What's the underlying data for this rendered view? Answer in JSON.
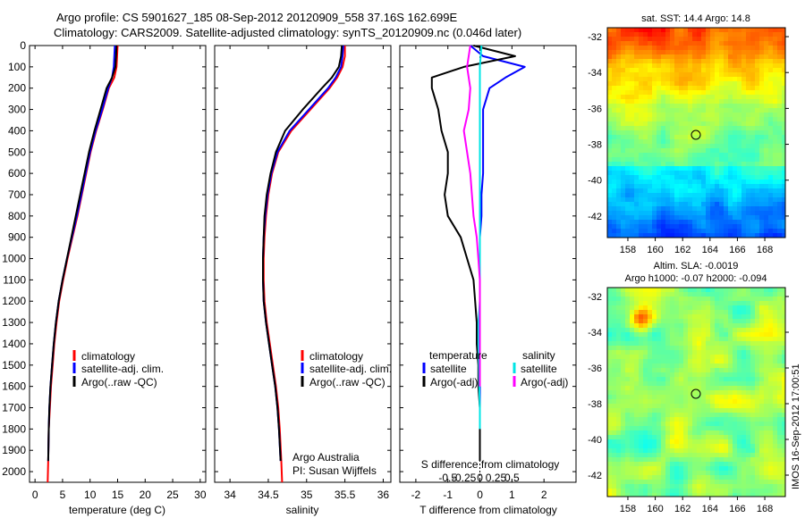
{
  "title_line1": "Argo profile: CS 5901627_185 08-Sep-2012 20120909_558 37.16S 162.699E",
  "title_line2": "Climatology: CARS2009. Satellite-adjusted climatology: synTS_20120909.nc (0.046d later)",
  "colors": {
    "climatology": "#ff0000",
    "satellite": "#0000ff",
    "argo": "#000000",
    "sal_satellite": "#00e5e5",
    "sal_argo": "#ff00ff"
  },
  "depth_ticks": [
    "0",
    "100",
    "200",
    "300",
    "400",
    "500",
    "600",
    "700",
    "800",
    "900",
    "1000",
    "1100",
    "1200",
    "1300",
    "1400",
    "1500",
    "1600",
    "1700",
    "1800",
    "1900",
    "2000"
  ],
  "panel_temp": {
    "xlabel": "temperature (deg C)",
    "xticks": [
      "0",
      "5",
      "10",
      "15",
      "20",
      "25",
      "30"
    ],
    "legend": [
      "climatology",
      "satellite-adj. clim.",
      "Argo(..raw -QC)"
    ]
  },
  "panel_sal": {
    "xlabel": "salinity",
    "xticks": [
      "34",
      "34.5",
      "35",
      "35.5",
      "36"
    ],
    "legend": [
      "climatology",
      "satellite-adj. clim.",
      "Argo(..raw -QC)"
    ],
    "credit1": "Argo Australia",
    "credit2": "PI: Susan Wijffels"
  },
  "panel_diff": {
    "xlabel": "T difference from climatology",
    "toplabel": "S difference from climatology",
    "xticks_T": [
      "-2",
      "-1",
      "0",
      "1",
      "2"
    ],
    "xticks_S": [
      "-0.5",
      "-0.25",
      "0",
      "0.25",
      "0.5"
    ],
    "legend_head_T": "temperature",
    "legend_head_S": "salinity",
    "legend_T": [
      "satellite",
      "Argo(-adj)"
    ],
    "legend_S": [
      "satellite",
      "Argo(-adj)"
    ]
  },
  "map_sst": {
    "title": "sat. SST: 14.4 Argo: 14.8",
    "yticks": [
      "-32",
      "-34",
      "-36",
      "-38",
      "-40",
      "-42"
    ],
    "xticks": [
      "158",
      "160",
      "162",
      "164",
      "166",
      "168"
    ]
  },
  "map_sla": {
    "title1": "Altim. SLA: -0.0019",
    "title2": "Argo h1000: -0.07 h2000: -0.094",
    "yticks": [
      "-32",
      "-34",
      "-36",
      "-38",
      "-40",
      "-42"
    ],
    "xticks": [
      "158",
      "160",
      "162",
      "164",
      "166",
      "168"
    ]
  },
  "footer": "IMOS 16-Sep-2012 17:00:51",
  "chart_data": [
    {
      "type": "line",
      "xlabel": "temperature (deg C)",
      "ylabel": "",
      "xlim": [
        -1,
        31
      ],
      "ylim": [
        2050,
        0
      ],
      "series": [
        {
          "name": "climatology",
          "x": [
            15.0,
            14.9,
            14.8,
            14.4,
            13.4,
            12.3,
            11.1,
            10.1,
            9.3,
            8.5,
            7.7,
            6.8,
            5.9,
            5.1,
            4.4,
            3.9,
            3.5,
            3.2,
            2.9,
            2.7,
            2.5,
            2.4,
            2.3
          ],
          "y": [
            0,
            50,
            100,
            150,
            200,
            300,
            400,
            500,
            600,
            700,
            800,
            900,
            1000,
            1100,
            1200,
            1300,
            1400,
            1500,
            1600,
            1700,
            1800,
            1950,
            2050
          ]
        },
        {
          "name": "satellite-adj. clim.",
          "x": [
            14.5,
            14.4,
            14.3,
            14.0,
            13.3,
            12.2,
            11.0,
            10.0,
            9.2,
            8.4,
            7.6,
            6.7,
            5.8,
            5.0,
            4.3,
            3.8,
            3.4,
            3.1,
            2.8,
            2.6,
            2.5,
            2.4
          ],
          "y": [
            0,
            50,
            100,
            150,
            200,
            300,
            400,
            500,
            600,
            700,
            800,
            900,
            1000,
            1100,
            1200,
            1300,
            1400,
            1500,
            1600,
            1700,
            1800,
            1950
          ]
        },
        {
          "name": "Argo(..raw -QC)",
          "x": [
            14.8,
            14.7,
            14.6,
            14.0,
            13.0,
            11.9,
            10.8,
            9.8,
            9.0,
            8.2,
            7.4,
            6.6,
            5.8,
            5.0,
            4.3,
            3.8,
            3.4,
            3.1,
            2.8,
            2.6,
            2.5,
            2.4
          ],
          "y": [
            0,
            50,
            100,
            150,
            200,
            300,
            400,
            500,
            600,
            700,
            800,
            900,
            1000,
            1100,
            1200,
            1300,
            1400,
            1500,
            1600,
            1700,
            1800,
            1950
          ]
        }
      ]
    },
    {
      "type": "line",
      "xlabel": "salinity",
      "ylabel": "",
      "xlim": [
        33.8,
        36.1
      ],
      "ylim": [
        2050,
        0
      ],
      "series": [
        {
          "name": "climatology",
          "x": [
            35.5,
            35.5,
            35.47,
            35.4,
            35.3,
            35.05,
            34.8,
            34.63,
            34.55,
            34.5,
            34.47,
            34.45,
            34.44,
            34.44,
            34.45,
            34.48,
            34.52,
            34.56,
            34.6,
            34.63,
            34.65,
            34.67,
            34.68
          ],
          "y": [
            0,
            50,
            100,
            150,
            200,
            300,
            400,
            500,
            600,
            700,
            800,
            900,
            1000,
            1100,
            1200,
            1300,
            1400,
            1500,
            1600,
            1700,
            1800,
            1950,
            2050
          ]
        },
        {
          "name": "satellite-adj. clim.",
          "x": [
            35.48,
            35.47,
            35.45,
            35.38,
            35.28,
            35.03,
            34.78,
            34.62,
            34.54,
            34.49,
            34.46,
            34.44,
            34.43,
            34.43,
            34.44,
            34.47,
            34.51,
            34.55,
            34.59,
            34.62,
            34.64,
            34.66
          ],
          "y": [
            0,
            50,
            100,
            150,
            200,
            300,
            400,
            500,
            600,
            700,
            800,
            900,
            1000,
            1100,
            1200,
            1300,
            1400,
            1500,
            1600,
            1700,
            1800,
            1950
          ]
        },
        {
          "name": "Argo(..raw -QC)",
          "x": [
            35.46,
            35.45,
            35.42,
            35.33,
            35.2,
            34.95,
            34.72,
            34.6,
            34.53,
            34.48,
            34.45,
            34.44,
            34.43,
            34.43,
            34.44,
            34.47,
            34.51,
            34.55,
            34.59,
            34.62,
            34.64,
            34.66
          ],
          "y": [
            0,
            50,
            100,
            150,
            200,
            300,
            400,
            500,
            600,
            700,
            800,
            900,
            1000,
            1100,
            1200,
            1300,
            1400,
            1500,
            1600,
            1700,
            1800,
            1950
          ]
        }
      ]
    },
    {
      "type": "line",
      "xlabel": "T difference from climatology",
      "ylabel": "",
      "xlim": [
        -2.5,
        3.0
      ],
      "ylim": [
        2050,
        0
      ],
      "series": [
        {
          "name": "temperature satellite",
          "x": [
            -0.3,
            0.1,
            1.4,
            0.8,
            0.3,
            0.1,
            0.1,
            0.1,
            0.1,
            0.05,
            0.05,
            0.0,
            0.0,
            0.0,
            0.0,
            0.0,
            0.0,
            0.0,
            0.0,
            0.0,
            0.0
          ],
          "y": [
            0,
            50,
            100,
            150,
            200,
            300,
            400,
            500,
            600,
            700,
            800,
            900,
            1000,
            1100,
            1200,
            1300,
            1400,
            1500,
            1600,
            1700,
            1800
          ]
        },
        {
          "name": "temperature Argo(-adj)",
          "x": [
            -0.2,
            1.1,
            -0.5,
            -1.5,
            -1.5,
            -1.3,
            -1.2,
            -1.0,
            -1.0,
            -1.1,
            -1.0,
            -0.6,
            -0.4,
            -0.2,
            -0.15,
            -0.1,
            -0.1,
            -0.05,
            -0.05,
            0.0,
            0.0,
            0.0
          ],
          "y": [
            0,
            50,
            100,
            150,
            200,
            300,
            400,
            500,
            600,
            700,
            800,
            900,
            1000,
            1100,
            1200,
            1300,
            1400,
            1500,
            1600,
            1700,
            1800,
            1950
          ]
        },
        {
          "name": "salinity satellite",
          "x": [
            0.05,
            0.0,
            0.0,
            0.0,
            0.0,
            0.0,
            0.0,
            0.0,
            0.0,
            0.0,
            0.0,
            0.0,
            0.0,
            -0.05,
            -0.05,
            -0.03,
            -0.02,
            0.0,
            0.0
          ],
          "y": [
            0,
            100,
            200,
            300,
            400,
            500,
            600,
            700,
            800,
            900,
            1000,
            1100,
            1200,
            1300,
            1400,
            1500,
            1600,
            1700,
            1800
          ]
        },
        {
          "name": "salinity Argo(-adj)",
          "x": [
            -0.3,
            -0.4,
            -0.3,
            -0.35,
            -0.5,
            -0.4,
            -0.3,
            -0.25,
            -0.2,
            -0.1,
            -0.05,
            0.0,
            0.0,
            0.0,
            0.0,
            0.0,
            0.0
          ],
          "y": [
            0,
            100,
            200,
            300,
            400,
            500,
            600,
            700,
            800,
            900,
            1000,
            1100,
            1200,
            1300,
            1400,
            1500,
            1600
          ]
        }
      ]
    },
    {
      "type": "heatmap",
      "title": "sat. SST: 14.4 Argo: 14.8",
      "xlim": [
        156.5,
        169.5
      ],
      "ylim": [
        -43.2,
        -31.5
      ],
      "marker": {
        "lon": 162.7,
        "lat": -37.16
      }
    },
    {
      "type": "heatmap",
      "title": "Altim. SLA: -0.0019",
      "subtitle": "Argo h1000: -0.07 h2000: -0.094",
      "xlim": [
        156.5,
        169.5
      ],
      "ylim": [
        -43.2,
        -31.5
      ],
      "marker": {
        "lon": 162.7,
        "lat": -37.16
      }
    }
  ]
}
